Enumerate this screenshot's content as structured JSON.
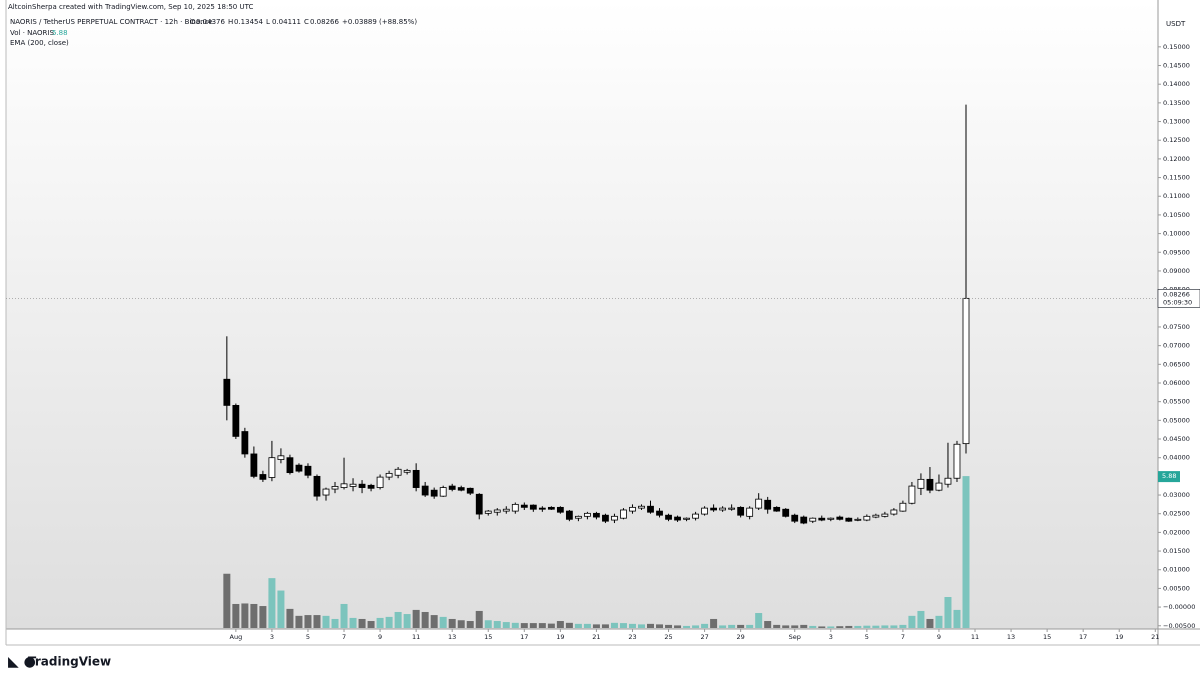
{
  "header": {
    "credit": "AltcoinSherpa created with TradingView.com, Sep 10, 2025 18:50 UTC"
  },
  "legend": {
    "symbol": "NAORIS / TetherUS PERPETUAL CONTRACT · 12h · Binance",
    "o": "O",
    "h": "H",
    "l": "L",
    "c": "C",
    "change": "+0.03889 (+88.85%)",
    "volume_label": "Vol · NAORIS",
    "ema": "EMA (200, close)"
  },
  "currency": "USDT",
  "countdown": "05:09:30",
  "logo": "TradingView",
  "chart_data": {
    "type": "candlestick",
    "up_color": "#ffffff",
    "down_color": "#000000",
    "wick_color": "#000000",
    "volume_up_color": "#7cc4bd",
    "volume_down_color": "#6e6e6e",
    "open": [
      0.061,
      0.054,
      0.047,
      0.041,
      0.0355,
      0.0347,
      0.0395,
      0.04,
      0.038,
      0.0377,
      0.035,
      0.03,
      0.0316,
      0.032,
      0.0323,
      0.0329,
      0.0326,
      0.032,
      0.0348,
      0.0353,
      0.0361,
      0.0366,
      0.0324,
      0.0313,
      0.0297,
      0.0324,
      0.032,
      0.0318,
      0.0302,
      0.0251,
      0.0254,
      0.0257,
      0.0257,
      0.0273,
      0.0273,
      0.0265,
      0.0267,
      0.0267,
      0.0257,
      0.0238,
      0.0243,
      0.0251,
      0.0246,
      0.0233,
      0.0238,
      0.0257,
      0.0265,
      0.027,
      0.0257,
      0.0246,
      0.0241,
      0.0235,
      0.0238,
      0.0249,
      0.0265,
      0.026,
      0.0262,
      0.0267,
      0.0243,
      0.0265,
      0.0286,
      0.0267,
      0.0262,
      0.0246,
      0.0241,
      0.023,
      0.0238,
      0.0235,
      0.0241,
      0.0238,
      0.0233,
      0.0233,
      0.0241,
      0.0243,
      0.0249,
      0.0257,
      0.0278,
      0.0318,
      0.0342,
      0.0313,
      0.0329,
      0.0345,
      0.04376
    ],
    "high": [
      0.0725,
      0.0545,
      0.048,
      0.043,
      0.0365,
      0.0445,
      0.0425,
      0.0408,
      0.0385,
      0.0385,
      0.0355,
      0.032,
      0.0335,
      0.04,
      0.0345,
      0.034,
      0.033,
      0.0355,
      0.0365,
      0.0375,
      0.037,
      0.0385,
      0.0335,
      0.032,
      0.0325,
      0.033,
      0.0325,
      0.032,
      0.0305,
      0.026,
      0.0265,
      0.027,
      0.028,
      0.028,
      0.0275,
      0.027,
      0.027,
      0.027,
      0.026,
      0.0245,
      0.0255,
      0.0255,
      0.025,
      0.025,
      0.0265,
      0.0275,
      0.0275,
      0.0285,
      0.0265,
      0.025,
      0.0245,
      0.024,
      0.0255,
      0.027,
      0.0275,
      0.027,
      0.0275,
      0.027,
      0.027,
      0.0305,
      0.0295,
      0.027,
      0.0265,
      0.025,
      0.0245,
      0.024,
      0.0245,
      0.024,
      0.0245,
      0.024,
      0.024,
      0.0248,
      0.025,
      0.0255,
      0.0265,
      0.0285,
      0.0335,
      0.0358,
      0.0375,
      0.0355,
      0.044,
      0.0445,
      0.13454
    ],
    "low": [
      0.05,
      0.045,
      0.04,
      0.0345,
      0.0335,
      0.0337,
      0.0385,
      0.0355,
      0.036,
      0.0345,
      0.0285,
      0.0285,
      0.0305,
      0.0315,
      0.031,
      0.0305,
      0.031,
      0.0315,
      0.034,
      0.0345,
      0.0355,
      0.031,
      0.0295,
      0.029,
      0.0295,
      0.031,
      0.031,
      0.03,
      0.0235,
      0.0245,
      0.0245,
      0.025,
      0.025,
      0.026,
      0.0255,
      0.0255,
      0.026,
      0.025,
      0.023,
      0.023,
      0.0235,
      0.0235,
      0.0225,
      0.0225,
      0.0235,
      0.025,
      0.026,
      0.025,
      0.024,
      0.023,
      0.0228,
      0.023,
      0.0232,
      0.0245,
      0.0255,
      0.0255,
      0.0258,
      0.024,
      0.0235,
      0.026,
      0.025,
      0.0255,
      0.024,
      0.0225,
      0.0222,
      0.0225,
      0.023,
      0.023,
      0.0232,
      0.0228,
      0.023,
      0.023,
      0.0238,
      0.024,
      0.0245,
      0.0255,
      0.0275,
      0.03,
      0.0305,
      0.031,
      0.032,
      0.0335,
      0.04111
    ],
    "close": [
      0.054,
      0.0457,
      0.041,
      0.035,
      0.0342,
      0.04,
      0.0405,
      0.036,
      0.0364,
      0.0353,
      0.0297,
      0.0316,
      0.0323,
      0.033,
      0.0329,
      0.032,
      0.0318,
      0.0348,
      0.0358,
      0.0369,
      0.0366,
      0.032,
      0.03,
      0.0297,
      0.032,
      0.0315,
      0.0313,
      0.0305,
      0.0249,
      0.0257,
      0.026,
      0.0262,
      0.0275,
      0.0267,
      0.0262,
      0.0262,
      0.0262,
      0.0254,
      0.0235,
      0.0243,
      0.0251,
      0.0241,
      0.023,
      0.0243,
      0.026,
      0.0267,
      0.027,
      0.0254,
      0.0246,
      0.0235,
      0.0233,
      0.0238,
      0.0249,
      0.0265,
      0.026,
      0.0265,
      0.0265,
      0.0246,
      0.0265,
      0.0289,
      0.0262,
      0.0257,
      0.0243,
      0.023,
      0.0225,
      0.0238,
      0.0233,
      0.0238,
      0.0235,
      0.023,
      0.0235,
      0.0243,
      0.0246,
      0.0249,
      0.026,
      0.0278,
      0.0324,
      0.0342,
      0.0313,
      0.0332,
      0.0345,
      0.0436,
      0.08266
    ],
    "volume": [
      2.1,
      0.93,
      0.95,
      0.93,
      0.85,
      1.93,
      1.45,
      0.74,
      0.47,
      0.5,
      0.5,
      0.47,
      0.35,
      0.93,
      0.39,
      0.35,
      0.27,
      0.39,
      0.43,
      0.62,
      0.54,
      0.7,
      0.62,
      0.5,
      0.43,
      0.35,
      0.3,
      0.27,
      0.66,
      0.3,
      0.27,
      0.23,
      0.2,
      0.19,
      0.19,
      0.19,
      0.17,
      0.27,
      0.2,
      0.16,
      0.16,
      0.14,
      0.14,
      0.2,
      0.19,
      0.16,
      0.14,
      0.16,
      0.14,
      0.12,
      0.1,
      0.08,
      0.1,
      0.16,
      0.35,
      0.1,
      0.12,
      0.12,
      0.12,
      0.58,
      0.27,
      0.12,
      0.1,
      0.1,
      0.12,
      0.08,
      0.06,
      0.06,
      0.07,
      0.08,
      0.08,
      0.09,
      0.09,
      0.1,
      0.1,
      0.12,
      0.47,
      0.66,
      0.35,
      0.47,
      1.2,
      0.7,
      5.88
    ],
    "xlim": [
      -24.5,
      103.3
    ],
    "xticks": [
      {
        "value": 1,
        "label": "Aug"
      },
      {
        "value": 5,
        "label": "3"
      },
      {
        "value": 9,
        "label": "5"
      },
      {
        "value": 13,
        "label": "7"
      },
      {
        "value": 17,
        "label": "9"
      },
      {
        "value": 21,
        "label": "11"
      },
      {
        "value": 25,
        "label": "13"
      },
      {
        "value": 29,
        "label": "15"
      },
      {
        "value": 33,
        "label": "17"
      },
      {
        "value": 37,
        "label": "19"
      },
      {
        "value": 41,
        "label": "21"
      },
      {
        "value": 45,
        "label": "23"
      },
      {
        "value": 49,
        "label": "25"
      },
      {
        "value": 53,
        "label": "27"
      },
      {
        "value": 57,
        "label": "29"
      },
      {
        "value": 63,
        "label": "Sep"
      },
      {
        "value": 67,
        "label": "3"
      },
      {
        "value": 71,
        "label": "5"
      },
      {
        "value": 75,
        "label": "7"
      },
      {
        "value": 79,
        "label": "9"
      },
      {
        "value": 83,
        "label": "11"
      },
      {
        "value": 87,
        "label": "13"
      },
      {
        "value": 91,
        "label": "15"
      },
      {
        "value": 95,
        "label": "17"
      },
      {
        "value": 99,
        "label": "19"
      },
      {
        "value": 103,
        "label": "21"
      }
    ],
    "ylim": [
      -0.0056,
      0.1604
    ],
    "yticks": [
      {
        "value": 0.15,
        "label": "0.15000"
      },
      {
        "value": 0.145,
        "label": "0.14500"
      },
      {
        "value": 0.14,
        "label": "0.14000"
      },
      {
        "value": 0.135,
        "label": "0.13500"
      },
      {
        "value": 0.13,
        "label": "0.13000"
      },
      {
        "value": 0.125,
        "label": "0.12500"
      },
      {
        "value": 0.12,
        "label": "0.12000"
      },
      {
        "value": 0.115,
        "label": "0.11500"
      },
      {
        "value": 0.11,
        "label": "0.11000"
      },
      {
        "value": 0.105,
        "label": "0.10500"
      },
      {
        "value": 0.1,
        "label": "0.10000"
      },
      {
        "value": 0.095,
        "label": "0.09500"
      },
      {
        "value": 0.09,
        "label": "0.09000"
      },
      {
        "value": 0.085,
        "label": "0.08500"
      },
      {
        "value": 0.075,
        "label": "0.07500"
      },
      {
        "value": 0.07,
        "label": "0.07000"
      },
      {
        "value": 0.065,
        "label": "0.06500"
      },
      {
        "value": 0.06,
        "label": "0.06000"
      },
      {
        "value": 0.055,
        "label": "0.05500"
      },
      {
        "value": 0.05,
        "label": "0.05000"
      },
      {
        "value": 0.045,
        "label": "0.04500"
      },
      {
        "value": 0.04,
        "label": "0.04000"
      },
      {
        "value": 0.03,
        "label": "0.03000"
      },
      {
        "value": 0.025,
        "label": "0.02500"
      },
      {
        "value": 0.02,
        "label": "0.02000"
      },
      {
        "value": 0.015,
        "label": "0.01500"
      },
      {
        "value": 0.01,
        "label": "0.01000"
      },
      {
        "value": 0.005,
        "label": "0.00500"
      },
      {
        "value": 0,
        "label": "−0.00000"
      },
      {
        "value": -0.005,
        "label": "−0.00500"
      }
    ]
  }
}
